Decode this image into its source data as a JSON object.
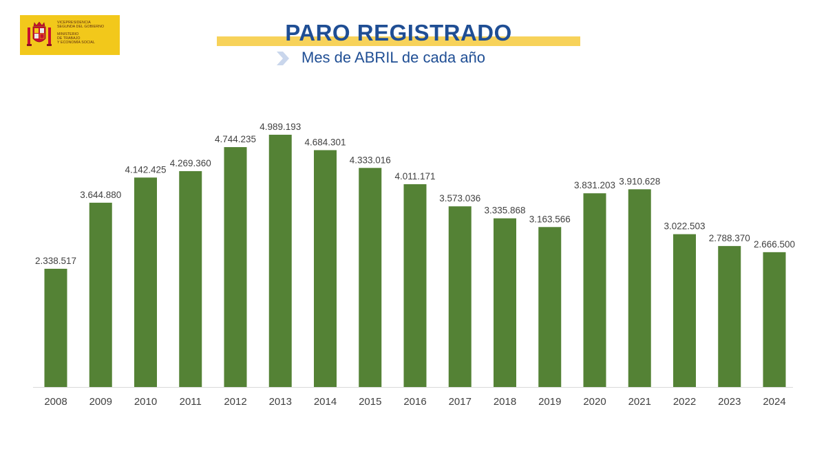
{
  "logo": {
    "lines": [
      "VICEPRESIDENCIA",
      "SEGUNDA DEL GOBIERNO",
      "MINISTERIO",
      "DE TRABAJO",
      "Y ECONOMÍA SOCIAL"
    ]
  },
  "header": {
    "title": "PARO REGISTRADO",
    "subtitle": "Mes de ABRIL de cada año"
  },
  "colors": {
    "bar": "#548235",
    "axis": "#d9d9d9",
    "label": "#404040",
    "title": "#1f4e94",
    "band": "#f7d25a",
    "logo": "#f2c81b"
  },
  "chart_data": {
    "type": "bar",
    "title": "PARO REGISTRADO",
    "subtitle": "Mes de ABRIL de cada año",
    "categories": [
      "2008",
      "2009",
      "2010",
      "2011",
      "2012",
      "2013",
      "2014",
      "2015",
      "2016",
      "2017",
      "2018",
      "2019",
      "2020",
      "2021",
      "2022",
      "2023",
      "2024"
    ],
    "values": [
      2338517,
      3644880,
      4142425,
      4269360,
      4744235,
      4989193,
      4684301,
      4333016,
      4011171,
      3573036,
      3335868,
      3163566,
      3831203,
      3910628,
      3022503,
      2788370,
      2666500
    ],
    "labels": [
      "2.338.517",
      "3.644.880",
      "4.142.425",
      "4.269.360",
      "4.744.235",
      "4.989.193",
      "4.684.301",
      "4.333.016",
      "4.011.171",
      "3.573.036",
      "3.335.868",
      "3.163.566",
      "3.831.203",
      "3.910.628",
      "3.022.503",
      "2.788.370",
      "2.666.500"
    ],
    "xlabel": "",
    "ylabel": "",
    "ylim": [
      0,
      5000000
    ],
    "grid": false,
    "legend": "none"
  }
}
